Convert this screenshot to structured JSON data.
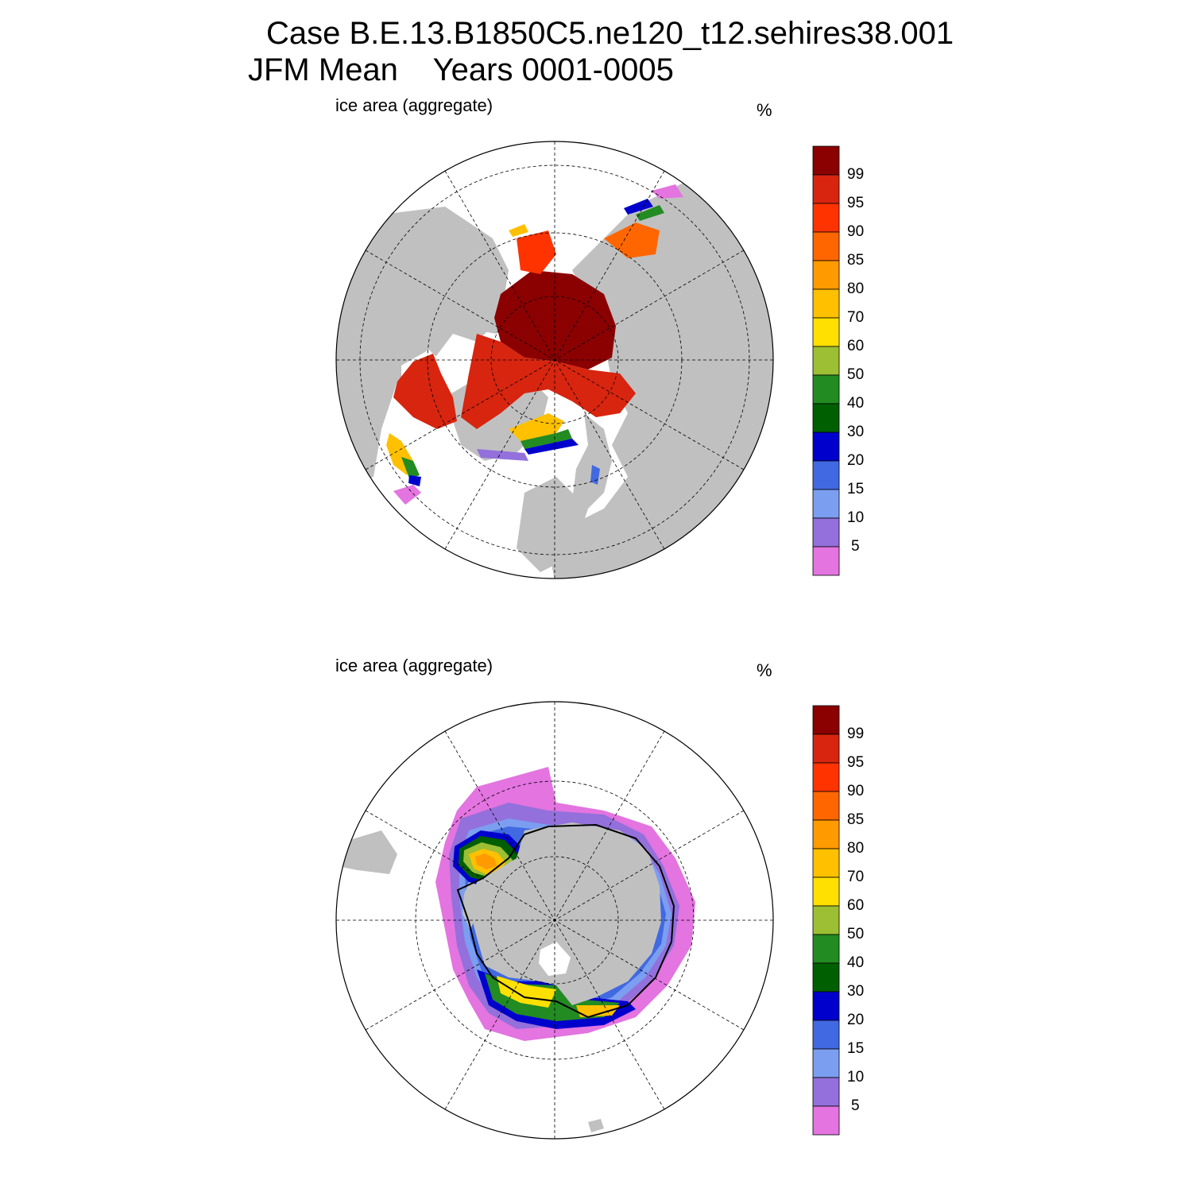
{
  "title": {
    "line1": "Case B.E.13.B1850C5.ne120_t12.sehires38.001",
    "line2": "JFM Mean    Years 0001-0005"
  },
  "panels": [
    {
      "name": "north",
      "label": "ice area  (aggregate)",
      "unit": "%"
    },
    {
      "name": "south",
      "label": "ice area  (aggregate)",
      "unit": "%"
    }
  ],
  "colorbar": {
    "labels": [
      "99",
      "95",
      "90",
      "85",
      "80",
      "70",
      "60",
      "50",
      "40",
      "30",
      "20",
      "15",
      "10",
      "5"
    ],
    "colors": [
      "#8b0000",
      "#d7250f",
      "#ff3300",
      "#ff6600",
      "#ff9a00",
      "#ffc000",
      "#ffe000",
      "#9cbf34",
      "#228b22",
      "#005f00",
      "#0000cd",
      "#4169e1",
      "#7b9ef0",
      "#9370db",
      "#e374e0"
    ]
  },
  "colors": {
    "land": "#c0c0c0",
    "ocean": "#ffffff",
    "outline": "#000000"
  }
}
